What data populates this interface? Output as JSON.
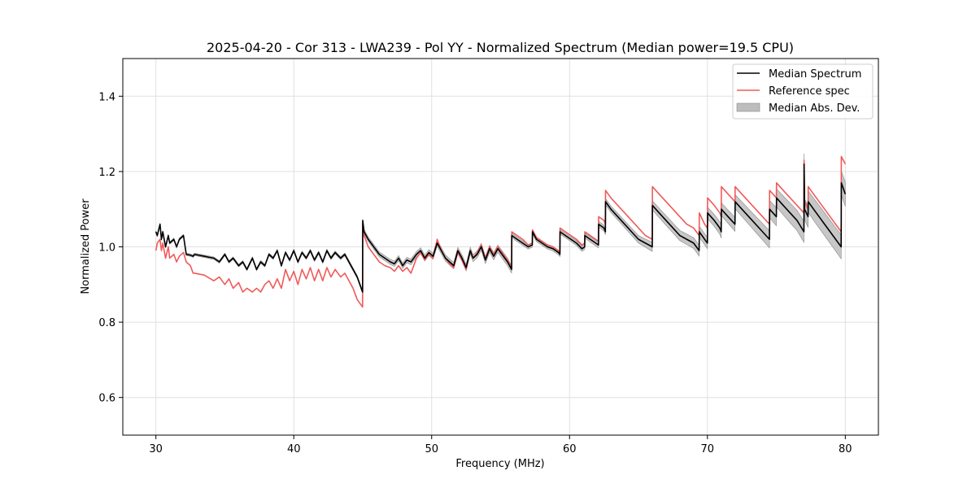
{
  "chart_data": {
    "type": "line",
    "title": "2025-04-20 - Cor 313 - LWA239 - Pol YY - Normalized Spectrum (Median power=19.5 CPU)",
    "xlabel": "Frequency (MHz)",
    "ylabel": "Normalized Power",
    "xlim": [
      27.6,
      82.4
    ],
    "ylim": [
      0.5,
      1.5
    ],
    "xticks": [
      30,
      40,
      50,
      60,
      70,
      80
    ],
    "yticks": [
      0.6,
      0.8,
      1.0,
      1.2,
      1.4
    ],
    "xtick_labels": [
      "30",
      "40",
      "50",
      "60",
      "70",
      "80"
    ],
    "ytick_labels": [
      "0.6",
      "0.8",
      "1.0",
      "1.2",
      "1.4"
    ],
    "grid": true,
    "legend_position": "top-right",
    "colors": {
      "median": "#000000",
      "reference": "#f05a5a",
      "mad_fill": "#bdbdbd",
      "mad_edge": "#888888",
      "grid": "#e0e0e0"
    },
    "legend": [
      {
        "label": "Median Spectrum",
        "kind": "line",
        "color": "#000000"
      },
      {
        "label": "Reference spec",
        "kind": "line",
        "color": "#f05a5a"
      },
      {
        "label": "Median Abs. Dev.",
        "kind": "patch",
        "color": "#bdbdbd"
      }
    ],
    "series": [
      {
        "name": "Median Spectrum",
        "x": [
          30.0,
          30.1,
          30.3,
          30.4,
          30.5,
          30.7,
          30.9,
          31.0,
          31.3,
          31.5,
          31.7,
          32.0,
          32.2,
          32.5,
          32.7,
          32.8,
          33.5,
          34.2,
          34.6,
          35.0,
          35.3,
          35.6,
          36.0,
          36.3,
          36.6,
          37.0,
          37.3,
          37.6,
          37.9,
          38.2,
          38.5,
          38.8,
          39.1,
          39.4,
          39.7,
          40.0,
          40.3,
          40.6,
          40.9,
          41.2,
          41.5,
          41.8,
          42.1,
          42.4,
          42.7,
          43.0,
          43.4,
          43.7,
          44.0,
          44.3,
          44.6,
          44.99,
          45.0,
          45.1,
          45.4,
          45.8,
          46.2,
          46.6,
          47.0,
          47.3,
          47.6,
          47.9,
          48.2,
          48.5,
          48.9,
          49.2,
          49.5,
          49.8,
          50.1,
          50.4,
          50.7,
          51.0,
          51.3,
          51.6,
          51.9,
          52.2,
          52.5,
          52.8,
          53.0,
          53.3,
          53.6,
          53.9,
          54.2,
          54.5,
          54.8,
          55.1,
          55.5,
          55.8,
          55.81,
          56.2,
          56.6,
          57.0,
          57.3,
          57.31,
          57.6,
          58.0,
          58.4,
          58.8,
          59.2,
          59.3,
          59.31,
          59.7,
          60.1,
          60.5,
          60.9,
          61.1,
          61.11,
          61.5,
          61.9,
          62.1,
          62.11,
          62.5,
          62.6,
          62.61,
          63.0,
          63.5,
          64.0,
          64.5,
          65.0,
          65.5,
          66.0,
          66.01,
          66.5,
          67.0,
          67.5,
          68.0,
          68.5,
          69.0,
          69.4,
          69.41,
          69.8,
          70.0,
          70.01,
          70.5,
          70.9,
          71.0,
          71.01,
          71.5,
          72.0,
          72.01,
          72.5,
          73.0,
          73.5,
          74.0,
          74.5,
          74.51,
          75.0,
          75.01,
          75.5,
          76.0,
          76.5,
          77.0,
          77.01,
          77.05,
          77.3,
          77.31,
          77.7,
          78.1,
          78.5,
          78.9,
          79.3,
          79.7,
          79.71,
          80.0
        ],
        "values": [
          1.04,
          1.03,
          1.06,
          1.02,
          1.04,
          1.0,
          1.03,
          1.01,
          1.02,
          1.0,
          1.02,
          1.03,
          0.98,
          0.978,
          0.975,
          0.98,
          0.975,
          0.97,
          0.96,
          0.98,
          0.96,
          0.97,
          0.95,
          0.96,
          0.94,
          0.97,
          0.94,
          0.96,
          0.95,
          0.98,
          0.97,
          0.99,
          0.95,
          0.985,
          0.965,
          0.99,
          0.96,
          0.985,
          0.97,
          0.99,
          0.965,
          0.985,
          0.96,
          0.99,
          0.97,
          0.985,
          0.97,
          0.98,
          0.96,
          0.94,
          0.92,
          0.88,
          1.07,
          1.04,
          1.02,
          1.0,
          0.98,
          0.97,
          0.96,
          0.955,
          0.97,
          0.95,
          0.965,
          0.96,
          0.98,
          0.99,
          0.97,
          0.985,
          0.975,
          1.01,
          0.99,
          0.97,
          0.96,
          0.95,
          0.99,
          0.97,
          0.945,
          0.99,
          0.97,
          0.98,
          1.0,
          0.965,
          0.995,
          0.975,
          0.995,
          0.98,
          0.96,
          0.94,
          1.03,
          1.02,
          1.01,
          1.0,
          1.005,
          1.04,
          1.02,
          1.01,
          1.0,
          0.995,
          0.985,
          0.98,
          1.04,
          1.03,
          1.02,
          1.01,
          0.995,
          1.0,
          1.03,
          1.02,
          1.01,
          1.005,
          1.06,
          1.05,
          1.04,
          1.12,
          1.1,
          1.08,
          1.06,
          1.04,
          1.02,
          1.01,
          1.0,
          1.11,
          1.09,
          1.07,
          1.05,
          1.03,
          1.02,
          1.01,
          0.99,
          1.04,
          1.02,
          1.01,
          1.09,
          1.07,
          1.05,
          1.04,
          1.1,
          1.08,
          1.06,
          1.12,
          1.1,
          1.08,
          1.06,
          1.04,
          1.02,
          1.1,
          1.08,
          1.13,
          1.11,
          1.09,
          1.07,
          1.04,
          1.22,
          1.1,
          1.08,
          1.12,
          1.1,
          1.08,
          1.06,
          1.04,
          1.02,
          1.0,
          1.17,
          1.14
        ]
      },
      {
        "name": "Reference spec",
        "x": [
          30.0,
          30.1,
          30.3,
          30.4,
          30.5,
          30.7,
          30.9,
          31.0,
          31.3,
          31.5,
          31.7,
          32.0,
          32.2,
          32.5,
          32.7,
          32.8,
          33.5,
          34.2,
          34.6,
          35.0,
          35.3,
          35.6,
          36.0,
          36.3,
          36.6,
          37.0,
          37.3,
          37.6,
          37.9,
          38.2,
          38.5,
          38.8,
          39.1,
          39.4,
          39.7,
          40.0,
          40.3,
          40.6,
          40.9,
          41.2,
          41.5,
          41.8,
          42.1,
          42.4,
          42.7,
          43.0,
          43.4,
          43.7,
          44.0,
          44.3,
          44.6,
          44.99,
          45.0,
          45.1,
          45.4,
          45.8,
          46.2,
          46.6,
          47.0,
          47.3,
          47.6,
          47.9,
          48.2,
          48.5,
          48.9,
          49.2,
          49.5,
          49.8,
          50.1,
          50.4,
          50.7,
          51.0,
          51.3,
          51.6,
          51.9,
          52.2,
          52.5,
          52.8,
          53.0,
          53.3,
          53.6,
          53.9,
          54.2,
          54.5,
          54.8,
          55.1,
          55.5,
          55.8,
          55.81,
          56.2,
          56.6,
          57.0,
          57.3,
          57.31,
          57.6,
          58.0,
          58.4,
          58.8,
          59.2,
          59.3,
          59.31,
          59.7,
          60.1,
          60.5,
          60.9,
          61.1,
          61.11,
          61.5,
          61.9,
          62.1,
          62.11,
          62.5,
          62.6,
          62.61,
          63.0,
          63.5,
          64.0,
          64.5,
          65.0,
          65.5,
          66.0,
          66.01,
          66.5,
          67.0,
          67.5,
          68.0,
          68.5,
          69.0,
          69.4,
          69.41,
          69.8,
          70.0,
          70.01,
          70.5,
          70.9,
          71.0,
          71.01,
          71.5,
          72.0,
          72.01,
          72.5,
          73.0,
          73.5,
          74.0,
          74.5,
          74.51,
          75.0,
          75.01,
          75.5,
          76.0,
          76.5,
          77.0,
          77.01,
          77.05,
          77.3,
          77.31,
          77.7,
          78.1,
          78.5,
          78.9,
          79.3,
          79.7,
          79.71,
          80.0
        ],
        "values": [
          0.99,
          1.01,
          1.02,
          0.99,
          1.01,
          0.97,
          1.0,
          0.97,
          0.98,
          0.96,
          0.975,
          0.985,
          0.96,
          0.95,
          0.93,
          0.93,
          0.925,
          0.91,
          0.92,
          0.9,
          0.915,
          0.89,
          0.905,
          0.88,
          0.89,
          0.88,
          0.89,
          0.88,
          0.9,
          0.91,
          0.89,
          0.915,
          0.89,
          0.94,
          0.91,
          0.935,
          0.9,
          0.94,
          0.915,
          0.945,
          0.91,
          0.94,
          0.91,
          0.945,
          0.92,
          0.94,
          0.92,
          0.93,
          0.91,
          0.89,
          0.86,
          0.84,
          1.06,
          1.03,
          1.0,
          0.98,
          0.96,
          0.95,
          0.945,
          0.935,
          0.95,
          0.935,
          0.945,
          0.93,
          0.97,
          0.985,
          0.965,
          0.98,
          0.97,
          1.02,
          0.99,
          0.97,
          0.955,
          0.945,
          0.985,
          0.965,
          0.94,
          0.99,
          0.97,
          0.985,
          1.005,
          0.97,
          1.0,
          0.98,
          1.0,
          0.985,
          0.965,
          0.945,
          1.04,
          1.03,
          1.02,
          1.005,
          1.01,
          1.045,
          1.025,
          1.015,
          1.005,
          1.0,
          0.99,
          0.985,
          1.05,
          1.04,
          1.03,
          1.02,
          1.005,
          1.01,
          1.04,
          1.03,
          1.02,
          1.015,
          1.08,
          1.07,
          1.06,
          1.15,
          1.13,
          1.11,
          1.09,
          1.07,
          1.05,
          1.03,
          1.02,
          1.16,
          1.14,
          1.12,
          1.1,
          1.08,
          1.06,
          1.05,
          1.03,
          1.09,
          1.06,
          1.05,
          1.13,
          1.11,
          1.09,
          1.08,
          1.16,
          1.14,
          1.12,
          1.16,
          1.14,
          1.12,
          1.1,
          1.08,
          1.06,
          1.15,
          1.13,
          1.17,
          1.15,
          1.13,
          1.11,
          1.09,
          1.23,
          1.12,
          1.1,
          1.16,
          1.14,
          1.12,
          1.1,
          1.08,
          1.06,
          1.04,
          1.24,
          1.22
        ]
      }
    ],
    "mad_band": {
      "name": "Median Abs. Dev.",
      "x": [
        30,
        45,
        45.01,
        50,
        55.8,
        55.81,
        60,
        65,
        66,
        70,
        74,
        77,
        78,
        80
      ],
      "half_width": [
        0.003,
        0.004,
        0.006,
        0.008,
        0.01,
        0.006,
        0.006,
        0.01,
        0.012,
        0.015,
        0.022,
        0.028,
        0.03,
        0.032
      ]
    }
  }
}
